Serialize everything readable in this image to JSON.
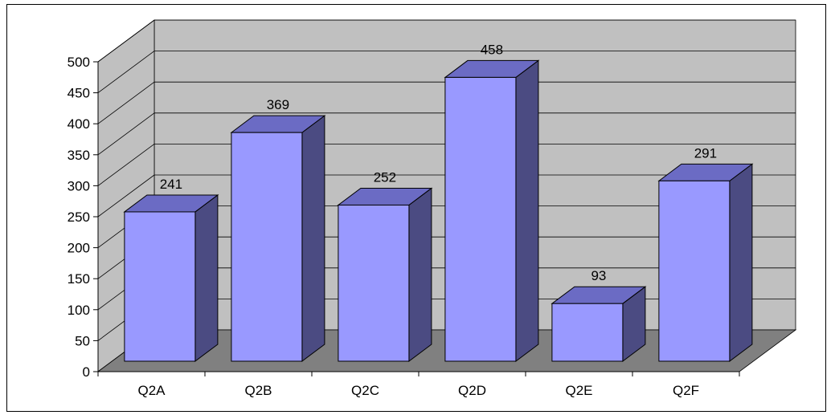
{
  "chart_data": {
    "type": "bar",
    "categories": [
      "Q2A",
      "Q2B",
      "Q2C",
      "Q2D",
      "Q2E",
      "Q2F"
    ],
    "values": [
      241,
      369,
      252,
      458,
      93,
      291
    ],
    "ylim": [
      0,
      500
    ],
    "yticks": [
      "0",
      "50",
      "100",
      "150",
      "200",
      "250",
      "300",
      "350",
      "400",
      "450",
      "500"
    ],
    "data_labels": [
      "241",
      "369",
      "252",
      "458",
      "93",
      "291"
    ],
    "grid": true,
    "three_d": true,
    "colors": {
      "bar_front": "#9999ff",
      "bar_top": "#6b6bc4",
      "bar_side": "#4b4b82",
      "back_wall": "#c0c0c0",
      "side_wall": "#c0c0c0",
      "floor": "#808080",
      "grid_line": "#000000"
    }
  }
}
